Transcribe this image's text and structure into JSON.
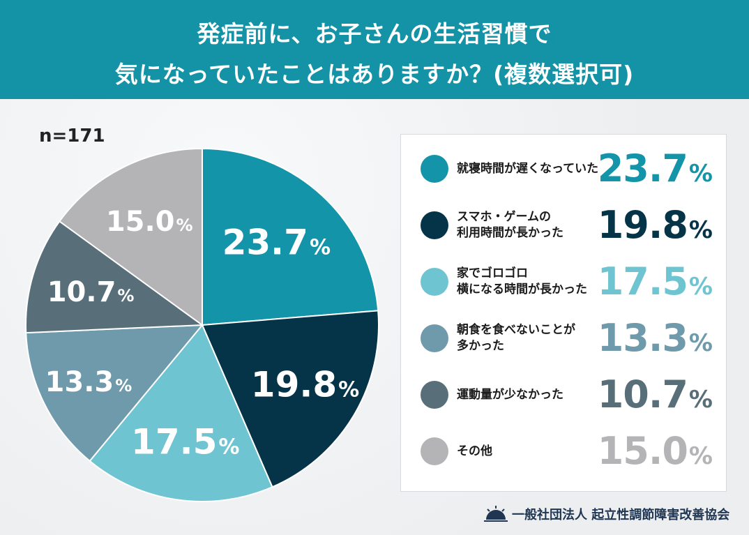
{
  "header": {
    "line1": "発症前に、お子さんの生活習慣で",
    "line2": "気になっていたことはありますか？(複数選択可)"
  },
  "sample": "n=171",
  "percent_sign": "%",
  "colors": {
    "header_bg": "#1493a7",
    "series": [
      "#1494a9",
      "#053448",
      "#6fc4d1",
      "#6f9aab",
      "#586f7a",
      "#b4b4b7"
    ]
  },
  "legend": [
    {
      "label": "就寝時間が遅くなっていた",
      "value": "23.7"
    },
    {
      "label": "スマホ・ゲームの\n利用時間が長かった",
      "value": "19.8"
    },
    {
      "label": "家でゴロゴロ\n横になる時間が長かった",
      "value": "17.5"
    },
    {
      "label": "朝食を食べないことが\n多かった",
      "value": "13.3"
    },
    {
      "label": "運動量が少なかった",
      "value": "10.7"
    },
    {
      "label": "その他",
      "value": "15.0"
    }
  ],
  "footer": {
    "org": "一般社団法人 起立性調節障害改善協会"
  },
  "chart_data": {
    "type": "pie",
    "title": "発症前に、お子さんの生活習慣で気になっていたことはありますか？(複数選択可)",
    "categories": [
      "就寝時間が遅くなっていた",
      "スマホ・ゲームの利用時間が長かった",
      "家でゴロゴロ横になる時間が長かった",
      "朝食を食べないことが多かった",
      "運動量が少なかった",
      "その他"
    ],
    "values": [
      23.7,
      19.8,
      17.5,
      13.3,
      10.7,
      15.0
    ],
    "labels": [
      "23.7",
      "19.8",
      "17.5",
      "13.3",
      "10.7",
      "15.0"
    ],
    "unit": "%",
    "legend": "right"
  }
}
